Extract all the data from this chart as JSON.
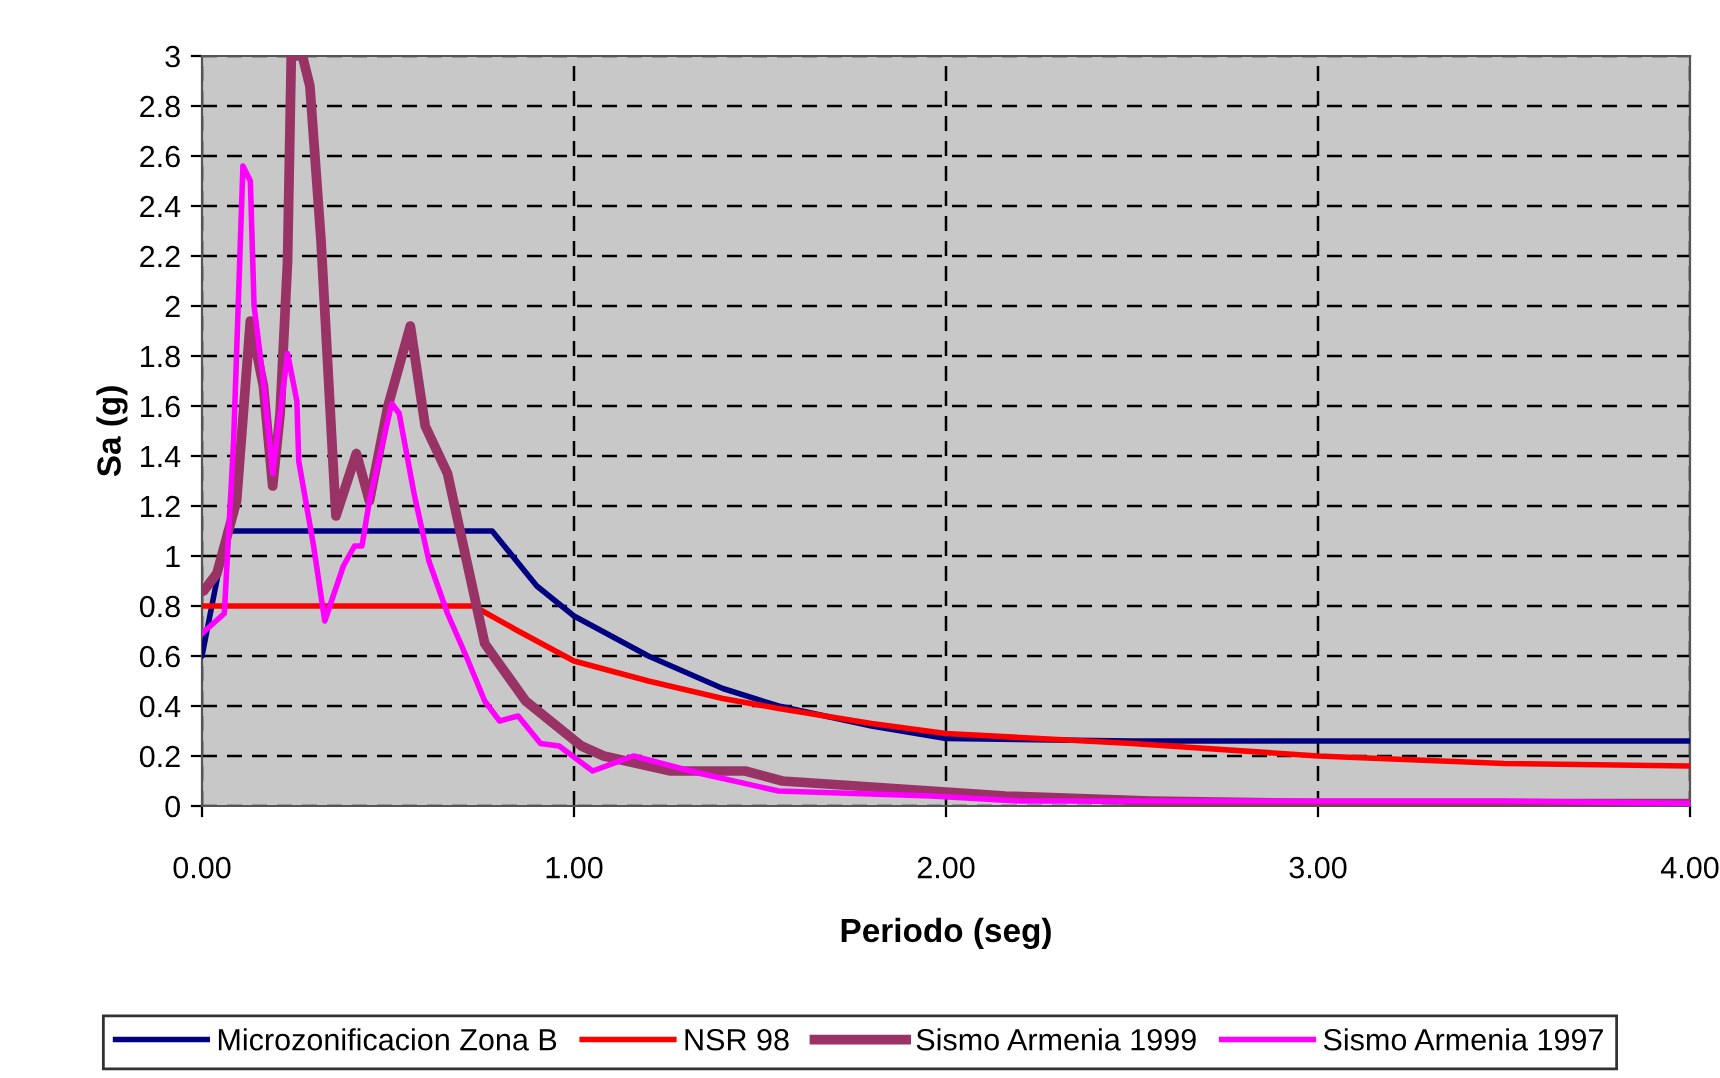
{
  "chart_data": {
    "type": "line",
    "xlabel": "Periodo (seg)",
    "ylabel": "Sa (g)",
    "xlim": [
      0,
      4
    ],
    "ylim": [
      0,
      3
    ],
    "xticks": [
      {
        "value": 0,
        "label": "0.00"
      },
      {
        "value": 1,
        "label": "1.00"
      },
      {
        "value": 2,
        "label": "2.00"
      },
      {
        "value": 3,
        "label": "3.00"
      },
      {
        "value": 4,
        "label": "4.00"
      }
    ],
    "yticks": [
      0,
      0.2,
      0.4,
      0.6,
      0.8,
      1,
      1.2,
      1.4,
      1.6,
      1.8,
      2,
      2.2,
      2.4,
      2.6,
      2.8,
      3
    ],
    "grid": true,
    "legend": "bottom",
    "series": [
      {
        "name": "Microzonificacion Zona B",
        "color": "#000080",
        "x": [
          0,
          0.066,
          0.78,
          0.9,
          1.0,
          1.2,
          1.4,
          1.55,
          1.8,
          2.0,
          2.5,
          3.0,
          3.5,
          4.0
        ],
        "values": [
          0.6,
          1.1,
          1.1,
          0.88,
          0.76,
          0.6,
          0.47,
          0.4,
          0.32,
          0.27,
          0.26,
          0.26,
          0.26,
          0.26
        ]
      },
      {
        "name": "NSR 98",
        "color": "#ff0000",
        "x": [
          0,
          0.73,
          0.85,
          1.0,
          1.2,
          1.4,
          1.55,
          1.8,
          2.0,
          2.5,
          3.0,
          3.5,
          4.0
        ],
        "values": [
          0.8,
          0.8,
          0.7,
          0.58,
          0.5,
          0.43,
          0.39,
          0.33,
          0.29,
          0.25,
          0.2,
          0.17,
          0.16
        ]
      },
      {
        "name": "Sismo Armenia 1999",
        "color": "#993366",
        "x": [
          0.004,
          0.04,
          0.093,
          0.13,
          0.165,
          0.19,
          0.21,
          0.23,
          0.24,
          0.27,
          0.29,
          0.32,
          0.36,
          0.415,
          0.45,
          0.5,
          0.56,
          0.6,
          0.66,
          0.76,
          0.87,
          1.02,
          1.08,
          1.2,
          1.26,
          1.46,
          1.56,
          1.96,
          2.16,
          2.55,
          3.0,
          3.5,
          4.0
        ],
        "values": [
          0.86,
          0.93,
          1.22,
          1.94,
          1.68,
          1.28,
          1.57,
          2.18,
          3,
          3,
          2.88,
          2.26,
          1.16,
          1.41,
          1.22,
          1.6,
          1.92,
          1.52,
          1.33,
          0.65,
          0.42,
          0.24,
          0.2,
          0.16,
          0.14,
          0.14,
          0.1,
          0.06,
          0.04,
          0.02,
          0.01,
          0.01,
          0.01
        ]
      },
      {
        "name": "Sismo Armenia 1997",
        "color": "#ff00ff",
        "x": [
          0,
          0.06,
          0.085,
          0.11,
          0.13,
          0.14,
          0.165,
          0.19,
          0.23,
          0.255,
          0.26,
          0.3,
          0.33,
          0.38,
          0.41,
          0.43,
          0.45,
          0.51,
          0.53,
          0.57,
          0.61,
          0.66,
          0.71,
          0.76,
          0.8,
          0.85,
          0.91,
          0.96,
          1.05,
          1.16,
          1.34,
          1.55,
          1.96,
          2.2,
          3.0,
          3.5,
          4.0
        ],
        "values": [
          0.69,
          0.77,
          1.46,
          2.56,
          2.5,
          2.0,
          1.7,
          1.33,
          1.81,
          1.62,
          1.38,
          1.04,
          0.74,
          0.96,
          1.04,
          1.04,
          1.22,
          1.61,
          1.57,
          1.25,
          0.98,
          0.77,
          0.6,
          0.42,
          0.34,
          0.36,
          0.25,
          0.24,
          0.14,
          0.2,
          0.13,
          0.06,
          0.04,
          0.02,
          0.02,
          0.02,
          0.01
        ]
      }
    ]
  }
}
